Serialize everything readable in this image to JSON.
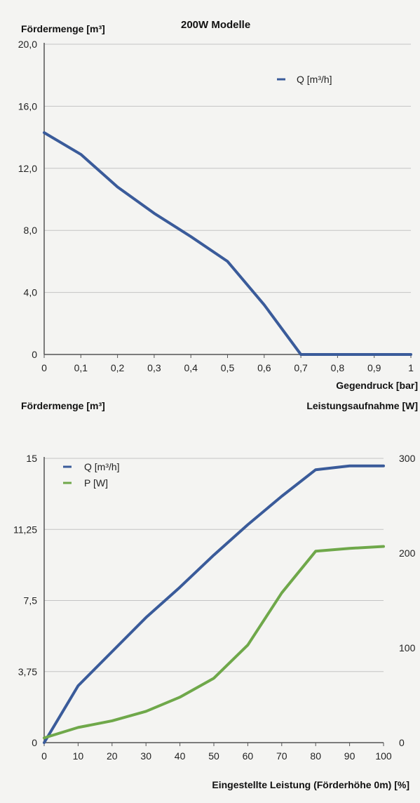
{
  "chart_data": [
    {
      "type": "line",
      "title": "200W Modelle",
      "ylabel": "Fördermenge [m³]",
      "xlabel": "Gegendruck [bar]",
      "x": [
        0,
        0.1,
        0.2,
        0.3,
        0.4,
        0.5,
        0.6,
        0.7,
        0.8,
        0.9,
        1
      ],
      "xticks": [
        "0",
        "0,1",
        "0,2",
        "0,3",
        "0,4",
        "0,5",
        "0,6",
        "0,7",
        "0,8",
        "0,9",
        "1"
      ],
      "yticks": [
        "0",
        "4,0",
        "8,0",
        "12,0",
        "16,0",
        "20,0"
      ],
      "ylim": [
        0,
        20
      ],
      "xlim": [
        0,
        1
      ],
      "grid": true,
      "legend": "top-right",
      "series": [
        {
          "name": "Q [m³/h]",
          "color": "#3a5b9a",
          "values": [
            14.3,
            12.9,
            10.8,
            9.1,
            7.6,
            6.0,
            3.2,
            0,
            0,
            0,
            0
          ]
        }
      ]
    },
    {
      "type": "line",
      "ylabel": "Fördermenge [m³]",
      "y2label": "Leistungsaufnahme [W]",
      "xlabel": "Eingestellte Leistung (Förderhöhe 0m) [%]",
      "x": [
        0,
        10,
        20,
        30,
        40,
        50,
        60,
        70,
        80,
        90,
        100
      ],
      "xticks": [
        "0",
        "10",
        "20",
        "30",
        "40",
        "50",
        "60",
        "70",
        "80",
        "90",
        "100"
      ],
      "yticks": [
        "0",
        "3,75",
        "7,5",
        "11,25",
        "15"
      ],
      "y2ticks": [
        "0",
        "100",
        "200",
        "300"
      ],
      "ylim": [
        0,
        15
      ],
      "y2lim": [
        0,
        300
      ],
      "xlim": [
        0,
        100
      ],
      "grid": true,
      "legend": "top-left",
      "series": [
        {
          "name": "Q [m³/h]",
          "axis": "left",
          "color": "#3a5b9a",
          "values": [
            0,
            3.0,
            4.8,
            6.6,
            8.2,
            9.9,
            11.5,
            13.0,
            14.4,
            14.6,
            14.6
          ]
        },
        {
          "name": "P [W]",
          "axis": "right",
          "color": "#6fa84a",
          "values": [
            5,
            16,
            23,
            33,
            48,
            68,
            103,
            158,
            202,
            205,
            207
          ]
        }
      ]
    }
  ]
}
